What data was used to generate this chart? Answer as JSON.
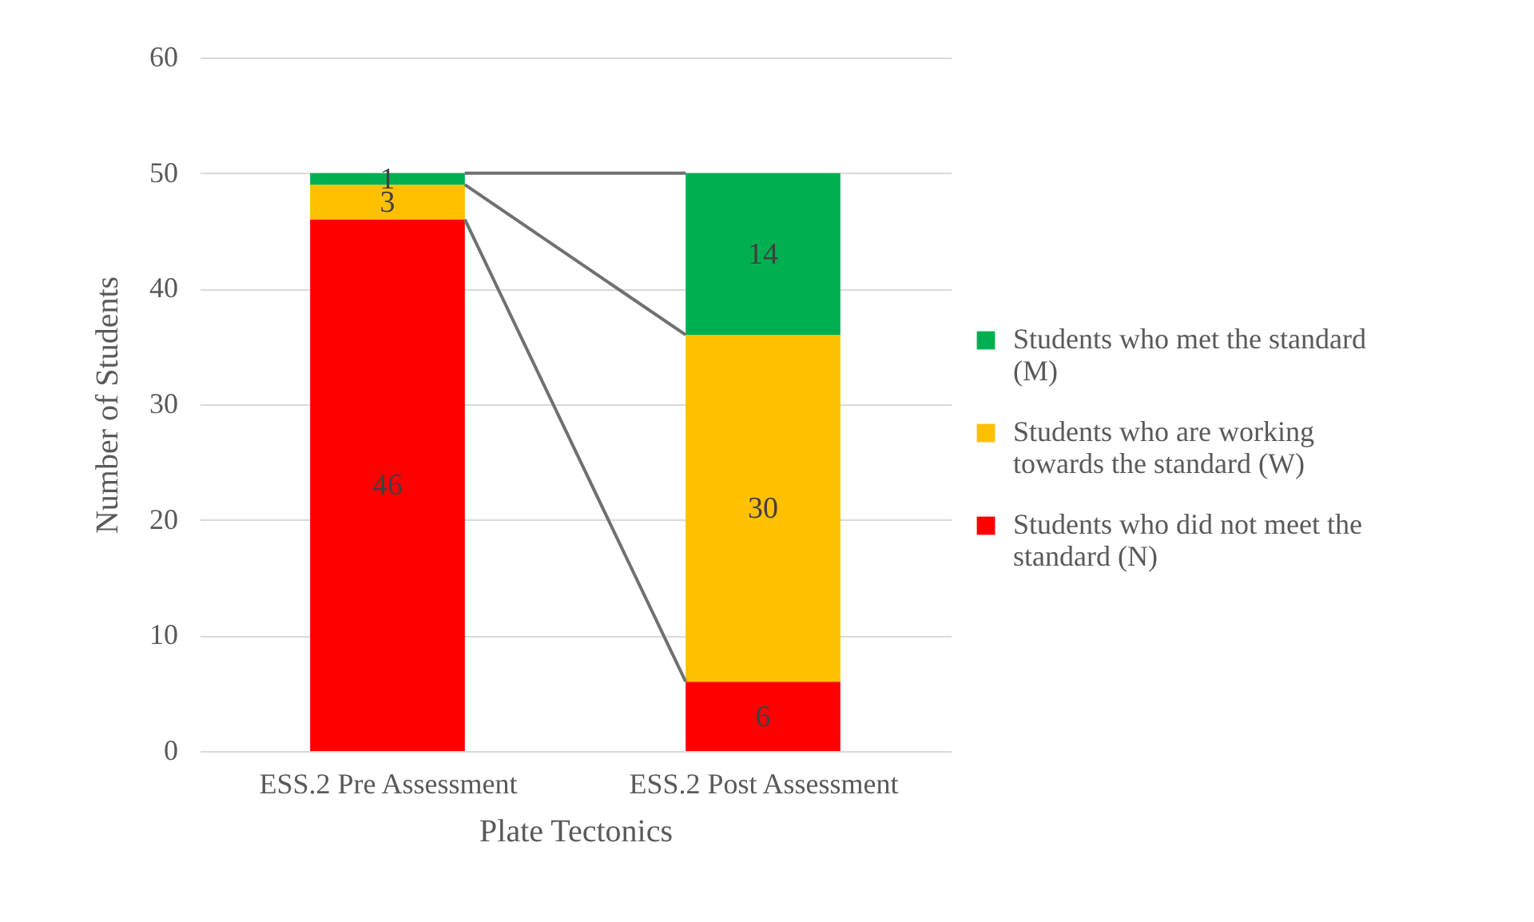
{
  "chart_data": {
    "type": "bar",
    "stacked": true,
    "xlabel": "Plate Tectonics",
    "ylabel": "Number of Students",
    "categories": [
      "ESS.2 Pre Assessment",
      "ESS.2 Post Assessment"
    ],
    "series": [
      {
        "name": "Students who did not meet the standard (N)",
        "color": "#ff0000",
        "values": [
          46,
          6
        ]
      },
      {
        "name": "Students who are working towards the standard (W)",
        "color": "#ffc000",
        "values": [
          3,
          30
        ]
      },
      {
        "name": "Students who met the standard (M)",
        "color": "#00b050",
        "values": [
          1,
          14
        ]
      }
    ],
    "ylim": [
      0,
      60
    ],
    "yticks": [
      0,
      10,
      20,
      30,
      40,
      50,
      60
    ],
    "grid": "y",
    "legend": "right",
    "data_labels": true
  }
}
